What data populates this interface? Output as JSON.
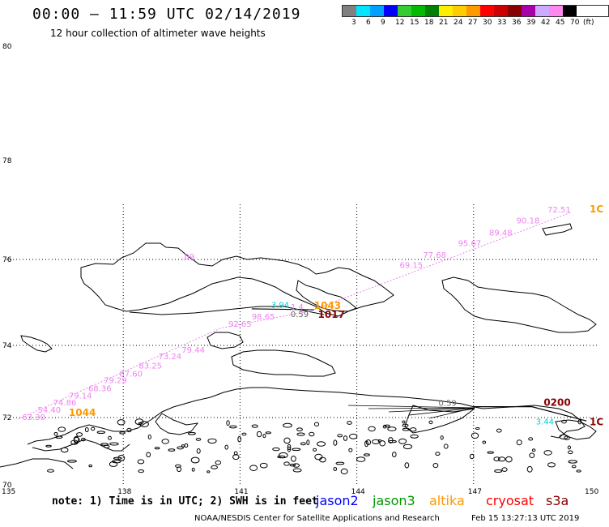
{
  "header": {
    "title": "00:00 – 11:59 UTC 02/14/2019",
    "subtitle": "12 hour collection of altimeter wave heights"
  },
  "legend": {
    "colors": [
      "#808080",
      "#00e5ff",
      "#00a0ff",
      "#0000ff",
      "#33cc33",
      "#00bb00",
      "#008000",
      "#ffee00",
      "#ffcc00",
      "#ff9900",
      "#ff0000",
      "#cc0000",
      "#880000",
      "#aa00aa",
      "#ccaaff",
      "#ff88ee",
      "#000000"
    ],
    "labels": [
      "3",
      "6",
      "9",
      "12",
      "15",
      "18",
      "21",
      "24",
      "27",
      "30",
      "33",
      "36",
      "39",
      "42",
      "45",
      "70"
    ],
    "unit": "(ft)"
  },
  "axes": {
    "lon_ticks": [
      "135",
      "138",
      "141",
      "144",
      "147",
      "150"
    ],
    "lat_ticks": [
      "80",
      "78",
      "76",
      "74",
      "72",
      "70"
    ]
  },
  "measurements": [
    {
      "text": "72.51",
      "lon": 148.9,
      "lat": 76.95,
      "color": "#ee82ee"
    },
    {
      "text": "90.18",
      "lon": 148.1,
      "lat": 76.73,
      "color": "#ee82ee"
    },
    {
      "text": "89.48",
      "lon": 147.4,
      "lat": 76.48,
      "color": "#ee82ee"
    },
    {
      "text": "95.67",
      "lon": 146.6,
      "lat": 76.27,
      "color": "#ee82ee"
    },
    {
      "text": "77.68",
      "lon": 145.7,
      "lat": 76.03,
      "color": "#ee82ee"
    },
    {
      "text": "69.15",
      "lon": 145.1,
      "lat": 75.8,
      "color": "#ee82ee"
    },
    {
      "text": ".09",
      "lon": 139.5,
      "lat": 76.0,
      "color": "#ee82ee"
    },
    {
      "text": "3.94",
      "lon": 141.8,
      "lat": 74.88,
      "color": "#00ccdd"
    },
    {
      "text": "1.4",
      "lon": 142.3,
      "lat": 74.83,
      "color": "#ee82ee"
    },
    {
      "text": "98.65",
      "lon": 141.3,
      "lat": 74.6,
      "color": "#ee82ee"
    },
    {
      "text": "0.59",
      "lon": 142.3,
      "lat": 74.66,
      "color": "#666666"
    },
    {
      "text": "92.65",
      "lon": 140.7,
      "lat": 74.43,
      "color": "#ee82ee"
    },
    {
      "text": "79.44",
      "lon": 139.5,
      "lat": 73.8,
      "color": "#ee82ee"
    },
    {
      "text": "73.24",
      "lon": 138.9,
      "lat": 73.62,
      "color": "#ee82ee"
    },
    {
      "text": "83.25",
      "lon": 138.4,
      "lat": 73.36,
      "color": "#ee82ee"
    },
    {
      "text": "87.60",
      "lon": 137.9,
      "lat": 73.14,
      "color": "#ee82ee"
    },
    {
      "text": "79.29",
      "lon": 137.5,
      "lat": 72.95,
      "color": "#ee82ee"
    },
    {
      "text": "68.36",
      "lon": 137.1,
      "lat": 72.73,
      "color": "#ee82ee"
    },
    {
      "text": "79.14",
      "lon": 136.6,
      "lat": 72.53,
      "color": "#ee82ee"
    },
    {
      "text": "74.86",
      "lon": 136.2,
      "lat": 72.34,
      "color": "#ee82ee"
    },
    {
      "text": "54.40",
      "lon": 135.8,
      "lat": 72.14,
      "color": "#ee82ee"
    },
    {
      "text": "63.30",
      "lon": 135.4,
      "lat": 71.93,
      "color": "#ee82ee"
    },
    {
      "text": "0.59",
      "lon": 146.1,
      "lat": 72.33,
      "color": "#666666"
    },
    {
      "text": "3.44",
      "lon": 148.6,
      "lat": 71.8,
      "color": "#00ccdd"
    }
  ],
  "time_labels": [
    {
      "text": "1043",
      "lon": 142.9,
      "lat": 74.85,
      "color": "#ff9900"
    },
    {
      "text": "1017",
      "lon": 143.0,
      "lat": 74.64,
      "color": "#880000"
    },
    {
      "text": "1044",
      "lon": 136.6,
      "lat": 72.05,
      "color": "#ff9900"
    },
    {
      "text": "0200",
      "lon": 148.8,
      "lat": 72.33,
      "color": "#880000"
    },
    {
      "text": "1C",
      "lon": 150.0,
      "lat": 76.95,
      "color": "#ff9900"
    },
    {
      "text": "1C",
      "lon": 150.0,
      "lat": 71.77,
      "color": "#880000"
    }
  ],
  "footer": {
    "note": "note: 1) Time is in UTC; 2) SWH is in feet",
    "satellites": [
      {
        "name": "jason2",
        "color": "#0000ff"
      },
      {
        "name": "jason3",
        "color": "#009900"
      },
      {
        "name": "altika",
        "color": "#ff9900"
      },
      {
        "name": "cryosat",
        "color": "#ff0000"
      },
      {
        "name": "s3a",
        "color": "#880000"
      }
    ],
    "credit": "NOAA/NESDIS Center for Satellite Applications and Research",
    "generated": "Feb 15 13:27:13 UTC 2019"
  }
}
